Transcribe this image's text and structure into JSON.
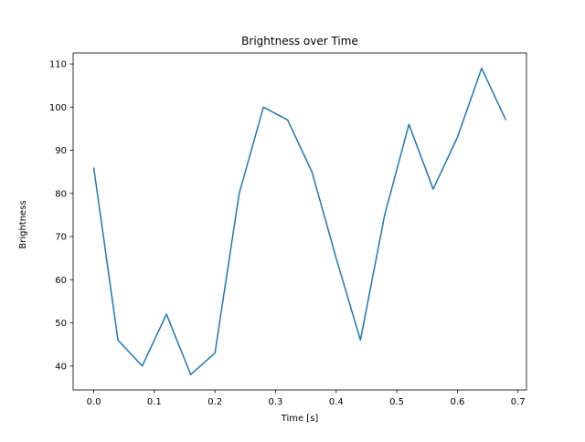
{
  "chart_data": {
    "type": "line",
    "title": "Brightness over Time",
    "xlabel": "Time [s]",
    "ylabel": "Brightness",
    "line_color": "#1f77b4",
    "x": [
      0.0,
      0.04,
      0.08,
      0.12,
      0.16,
      0.2,
      0.24,
      0.28,
      0.32,
      0.36,
      0.4,
      0.44,
      0.48,
      0.52,
      0.56,
      0.6,
      0.64,
      0.68
    ],
    "y": [
      86,
      46,
      40,
      52,
      38,
      43,
      80,
      100,
      97,
      85,
      65,
      46,
      75,
      96,
      81,
      93,
      109,
      97
    ],
    "xlim": [
      -0.034,
      0.714
    ],
    "ylim": [
      34.45,
      112.55
    ],
    "xticks": [
      0.0,
      0.1,
      0.2,
      0.3,
      0.4,
      0.5,
      0.6,
      0.7
    ],
    "xtick_labels": [
      "0.0",
      "0.1",
      "0.2",
      "0.3",
      "0.4",
      "0.5",
      "0.6",
      "0.7"
    ],
    "yticks": [
      40,
      50,
      60,
      70,
      80,
      90,
      100,
      110
    ],
    "ytick_labels": [
      "40",
      "50",
      "60",
      "70",
      "80",
      "90",
      "100",
      "110"
    ],
    "grid": false,
    "legend": "none",
    "spine_color": "#000000",
    "background_color": "#ffffff"
  }
}
